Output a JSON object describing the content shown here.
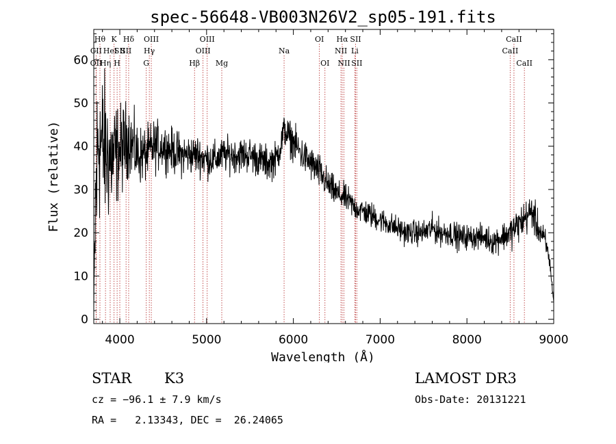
{
  "chart_data": {
    "type": "line",
    "title": "spec-56648-VB003N26V2_sp05-191.fits",
    "xlabel": "Wavelength (Å)",
    "ylabel": "Flux (relative)",
    "xlim": [
      3700,
      9000
    ],
    "ylim": [
      -1,
      67
    ],
    "xticks": [
      4000,
      5000,
      6000,
      7000,
      8000,
      9000
    ],
    "yticks": [
      0,
      10,
      20,
      30,
      40,
      50,
      60
    ],
    "line_color": "#000000",
    "marker_color": "#b22222",
    "spectrum_anchor_points": {
      "x": [
        3700,
        3720,
        3750,
        3800,
        3850,
        3900,
        3950,
        4000,
        4050,
        4100,
        4150,
        4200,
        4300,
        4400,
        4500,
        4600,
        4700,
        4800,
        4900,
        5000,
        5100,
        5200,
        5300,
        5400,
        5500,
        5600,
        5700,
        5800,
        5850,
        5900,
        5950,
        6000,
        6100,
        6200,
        6300,
        6400,
        6500,
        6600,
        6700,
        6800,
        6900,
        7000,
        7100,
        7200,
        7300,
        7400,
        7500,
        7600,
        7700,
        7800,
        7900,
        8000,
        8100,
        8200,
        8300,
        8400,
        8500,
        8550,
        8600,
        8650,
        8700,
        8750,
        8800,
        8850,
        8900,
        8950,
        9000
      ],
      "y": [
        2,
        25,
        42,
        40,
        38,
        37,
        38,
        39,
        40,
        42,
        40,
        38,
        38,
        40,
        40,
        39,
        38,
        38,
        38,
        37,
        37,
        38,
        38,
        38,
        38,
        37,
        36,
        37,
        40,
        44,
        42,
        41,
        38,
        36,
        34,
        31,
        29,
        28,
        26,
        25,
        24,
        23,
        22,
        21,
        20,
        20,
        20,
        21,
        20,
        20,
        19,
        19,
        19,
        19,
        18,
        19,
        20,
        21,
        22,
        23,
        24,
        25,
        22,
        20,
        18,
        14,
        4
      ],
      "noise_amplitude": [
        0,
        12,
        10,
        9,
        8,
        7,
        6,
        5,
        5,
        4,
        4,
        3.5,
        3,
        3,
        2.5,
        2.5,
        2.5,
        2.2,
        2.2,
        2.2,
        2,
        2,
        2,
        2,
        2,
        2,
        2,
        2,
        2,
        2,
        2,
        2,
        2,
        2,
        2,
        1.8,
        1.6,
        1.6,
        1.5,
        1.5,
        1.5,
        1.4,
        1.4,
        1.4,
        1.4,
        1.4,
        1.4,
        1.6,
        1.5,
        1.5,
        1.5,
        1.4,
        1.4,
        1.4,
        1.5,
        1.6,
        1.8,
        2,
        2,
        2,
        2,
        2,
        2,
        1.6,
        1.5,
        1.2,
        0
      ]
    },
    "lines": [
      {
        "label": "CII",
        "wl": 3727,
        "row": 2
      },
      {
        "label": "OII",
        "wl": 3727,
        "row": 3
      },
      {
        "label": "Hθ",
        "wl": 3771,
        "row": 1
      },
      {
        "label": "Hη",
        "wl": 3835,
        "row": 3
      },
      {
        "label": "HeI",
        "wl": 3889,
        "row": 2
      },
      {
        "label": "K",
        "wl": 3934,
        "row": 1
      },
      {
        "label": "SII",
        "wl": 4000,
        "row": 2
      },
      {
        "label": "H",
        "wl": 3969,
        "row": 3
      },
      {
        "label": "Hδ",
        "wl": 4102,
        "row": 1
      },
      {
        "label": "SII",
        "wl": 4072,
        "row": 2
      },
      {
        "label": "OIII",
        "wl": 4363,
        "row": 1
      },
      {
        "label": "Hγ",
        "wl": 4340,
        "row": 2
      },
      {
        "label": "G",
        "wl": 4305,
        "row": 3
      },
      {
        "label": "Hβ",
        "wl": 4861,
        "row": 3
      },
      {
        "label": "OIII",
        "wl": 5007,
        "row": 1
      },
      {
        "label": "OIII",
        "wl": 4959,
        "row": 2
      },
      {
        "label": "Mg",
        "wl": 5175,
        "row": 3
      },
      {
        "label": "Na",
        "wl": 5893,
        "row": 2
      },
      {
        "label": "OI",
        "wl": 6300,
        "row": 1
      },
      {
        "label": "OI",
        "wl": 6364,
        "row": 3
      },
      {
        "label": "Hα",
        "wl": 6563,
        "row": 1
      },
      {
        "label": "SII",
        "wl": 6717,
        "row": 1
      },
      {
        "label": "NII",
        "wl": 6548,
        "row": 2
      },
      {
        "label": "Li",
        "wl": 6708,
        "row": 2
      },
      {
        "label": "NII",
        "wl": 6583,
        "row": 3
      },
      {
        "label": "SII",
        "wl": 6731,
        "row": 3
      },
      {
        "label": "CaII",
        "wl": 8542,
        "row": 1
      },
      {
        "label": "CaII",
        "wl": 8498,
        "row": 2
      },
      {
        "label": "CaII",
        "wl": 8662,
        "row": 3
      }
    ]
  },
  "info": {
    "class": "STAR",
    "subclass": "K3",
    "survey": "LAMOST DR3",
    "cz": "cz = −96.1 ± 7.9 km/s",
    "obs_date": "Obs-Date: 20131221",
    "coords": "RA =   2.13343, DEC =  26.24065"
  }
}
